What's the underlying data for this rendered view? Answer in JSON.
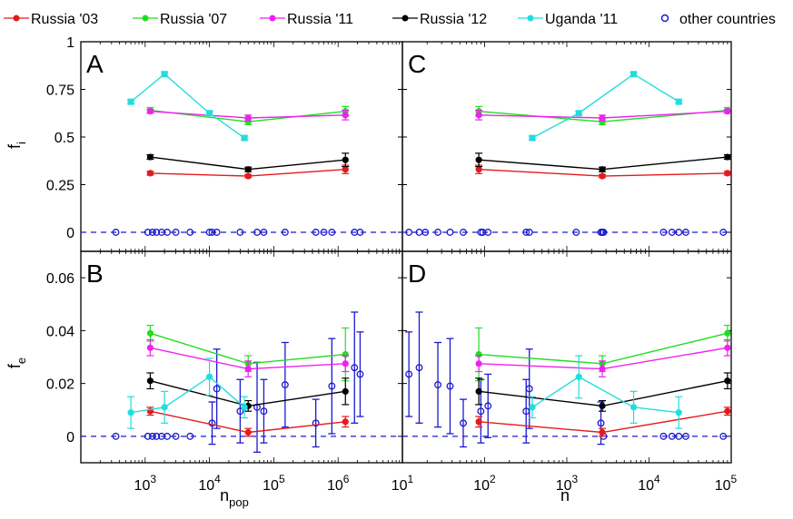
{
  "legend": [
    {
      "label": "Russia '03",
      "color": "#e41a1c",
      "marker": "filled"
    },
    {
      "label": "Russia '07",
      "color": "#22dd22",
      "marker": "filled"
    },
    {
      "label": "Russia '11",
      "color": "#ee22ee",
      "marker": "filled"
    },
    {
      "label": "Russia '12",
      "color": "#000000",
      "marker": "filled"
    },
    {
      "label": "Uganda '11",
      "color": "#22dddd",
      "marker": "filled"
    },
    {
      "label": "other countries",
      "color": "#1a1ad0",
      "marker": "open"
    }
  ],
  "axis_labels": {
    "ylabel_top": "f",
    "ylabel_top_sub": "i",
    "ylabel_bottom": "f",
    "ylabel_bottom_sub": "e",
    "xlabel_left": "n",
    "xlabel_left_sub": "pop",
    "xlabel_right": "n"
  },
  "chart_data": [
    {
      "panel": "A",
      "type": "line",
      "xscale": "log",
      "xlim": [
        100,
        10000000
      ],
      "ylim": [
        -0.1,
        1
      ],
      "yticks": [
        "0",
        "0.25",
        "0.5",
        "0.75",
        "1"
      ],
      "series": [
        {
          "name": "Russia '03",
          "color": "#e41a1c",
          "x": [
            1200,
            40000,
            1300000
          ],
          "y": [
            0.31,
            0.295,
            0.33
          ],
          "err": [
            0.01,
            0.008,
            0.022
          ]
        },
        {
          "name": "Russia '07",
          "color": "#22dd22",
          "x": [
            1200,
            40000,
            1300000
          ],
          "y": [
            0.64,
            0.58,
            0.635
          ],
          "err": [
            0.015,
            0.015,
            0.025
          ]
        },
        {
          "name": "Russia '11",
          "color": "#ee22ee",
          "x": [
            1200,
            40000,
            1300000
          ],
          "y": [
            0.635,
            0.6,
            0.615
          ],
          "err": [
            0.01,
            0.015,
            0.025
          ]
        },
        {
          "name": "Russia '12",
          "color": "#000000",
          "x": [
            1200,
            40000,
            1300000
          ],
          "y": [
            0.395,
            0.33,
            0.38
          ],
          "err": [
            0.012,
            0.012,
            0.035
          ]
        },
        {
          "name": "Uganda '11",
          "color": "#22dddd",
          "x": [
            600,
            2000,
            10000,
            35000
          ],
          "y": [
            0.685,
            0.83,
            0.625,
            0.495
          ],
          "err": [
            0.01,
            0.01,
            0.01,
            0.01
          ]
        }
      ],
      "other": {
        "x": [
          350,
          1100,
          1300,
          1500,
          1800,
          2200,
          3000,
          5000,
          10000,
          11000,
          13000,
          30000,
          55000,
          70000,
          150000,
          450000,
          600000,
          800000,
          1800000,
          2200000
        ],
        "y": [
          0,
          0,
          0,
          0,
          0,
          0,
          0,
          0,
          0,
          0,
          0,
          0,
          0,
          0,
          0,
          0,
          0,
          0,
          0,
          0
        ],
        "err": []
      },
      "dashed_zero": true
    },
    {
      "panel": "B",
      "type": "line",
      "xscale": "log",
      "xlim": [
        100,
        10000000
      ],
      "ylim": [
        -0.01,
        0.07
      ],
      "yticks": [
        "0",
        "0.02",
        "0.04",
        "0.06"
      ],
      "series": [
        {
          "name": "Russia '03",
          "color": "#e41a1c",
          "x": [
            1200,
            40000,
            1300000
          ],
          "y": [
            0.0095,
            0.0015,
            0.0055
          ],
          "err": [
            0.0015,
            0.0015,
            0.002
          ]
        },
        {
          "name": "Russia '07",
          "color": "#22dd22",
          "x": [
            1200,
            40000,
            1300000
          ],
          "y": [
            0.039,
            0.0275,
            0.031
          ],
          "err": [
            0.003,
            0.003,
            0.01
          ]
        },
        {
          "name": "Russia '11",
          "color": "#ee22ee",
          "x": [
            1200,
            40000,
            1300000
          ],
          "y": [
            0.0335,
            0.0255,
            0.0275
          ],
          "err": [
            0.003,
            0.003,
            0.003
          ]
        },
        {
          "name": "Russia '12",
          "color": "#000000",
          "x": [
            1200,
            40000,
            1300000
          ],
          "y": [
            0.021,
            0.0115,
            0.017
          ],
          "err": [
            0.003,
            0.002,
            0.005
          ]
        },
        {
          "name": "Uganda '11",
          "color": "#22dddd",
          "x": [
            600,
            2000,
            10000,
            35000
          ],
          "y": [
            0.009,
            0.011,
            0.0225,
            0.011
          ],
          "err": [
            0.006,
            0.006,
            0.007,
            0.004
          ]
        }
      ],
      "other": {
        "x": [
          350,
          1100,
          1300,
          1500,
          1800,
          2200,
          3000,
          5000,
          11000,
          13000,
          30000,
          55000,
          70000,
          150000,
          450000,
          800000,
          1800000,
          2200000
        ],
        "y": [
          0,
          0,
          0,
          0,
          0,
          0,
          0,
          0,
          0.005,
          0.018,
          0.0095,
          0.011,
          0.0095,
          0.0195,
          0.005,
          0.019,
          0.026,
          0.0235
        ],
        "err": [
          0,
          0,
          0,
          0,
          0,
          0,
          0,
          0,
          0.008,
          0.015,
          0.012,
          0.017,
          0.012,
          0.016,
          0.009,
          0.018,
          0.021,
          0.016
        ]
      },
      "dashed_zero": true
    },
    {
      "panel": "C",
      "type": "line",
      "xscale": "log",
      "xlim": [
        10,
        100000
      ],
      "ylim": [
        -0.1,
        1
      ],
      "series": [
        {
          "name": "Russia '03",
          "color": "#e41a1c",
          "x": [
            85,
            2700,
            90000
          ],
          "y": [
            0.33,
            0.295,
            0.31
          ],
          "err": [
            0.022,
            0.008,
            0.01
          ]
        },
        {
          "name": "Russia '07",
          "color": "#22dd22",
          "x": [
            85,
            2700,
            90000
          ],
          "y": [
            0.635,
            0.58,
            0.64
          ],
          "err": [
            0.025,
            0.015,
            0.015
          ]
        },
        {
          "name": "Russia '11",
          "color": "#ee22ee",
          "x": [
            85,
            2700,
            90000
          ],
          "y": [
            0.615,
            0.6,
            0.635
          ],
          "err": [
            0.025,
            0.015,
            0.01
          ]
        },
        {
          "name": "Russia '12",
          "color": "#000000",
          "x": [
            85,
            2700,
            90000
          ],
          "y": [
            0.38,
            0.33,
            0.395
          ],
          "err": [
            0.035,
            0.012,
            0.012
          ]
        },
        {
          "name": "Uganda '11",
          "color": "#22dddd",
          "x": [
            380,
            1400,
            6500,
            23000
          ],
          "y": [
            0.495,
            0.625,
            0.83,
            0.685
          ],
          "err": [
            0.01,
            0.01,
            0.01,
            0.01
          ]
        }
      ],
      "other": {
        "x": [
          12,
          16,
          19,
          27,
          38,
          55,
          90,
          95,
          110,
          320,
          350,
          1300,
          2600,
          2700,
          2800,
          15000,
          19000,
          23000,
          28000,
          80000
        ],
        "y": [
          0,
          0,
          0,
          0,
          0,
          0,
          0,
          0,
          0,
          0,
          0,
          0,
          0,
          0,
          0,
          0,
          0,
          0,
          0,
          0
        ],
        "err": []
      },
      "dashed_zero": true
    },
    {
      "panel": "D",
      "type": "line",
      "xscale": "log",
      "xlim": [
        10,
        100000
      ],
      "ylim": [
        -0.01,
        0.07
      ],
      "series": [
        {
          "name": "Russia '03",
          "color": "#e41a1c",
          "x": [
            85,
            2700,
            90000
          ],
          "y": [
            0.0055,
            0.0015,
            0.0095
          ],
          "err": [
            0.002,
            0.0015,
            0.0015
          ]
        },
        {
          "name": "Russia '07",
          "color": "#22dd22",
          "x": [
            85,
            2700,
            90000
          ],
          "y": [
            0.031,
            0.0275,
            0.039
          ],
          "err": [
            0.01,
            0.003,
            0.003
          ]
        },
        {
          "name": "Russia '11",
          "color": "#ee22ee",
          "x": [
            85,
            2700,
            90000
          ],
          "y": [
            0.0275,
            0.0255,
            0.0335
          ],
          "err": [
            0.003,
            0.003,
            0.003
          ]
        },
        {
          "name": "Russia '12",
          "color": "#000000",
          "x": [
            85,
            2700,
            90000
          ],
          "y": [
            0.017,
            0.0115,
            0.021
          ],
          "err": [
            0.005,
            0.002,
            0.003
          ]
        },
        {
          "name": "Uganda '11",
          "color": "#22dddd",
          "x": [
            380,
            1400,
            6500,
            23000
          ],
          "y": [
            0.011,
            0.0225,
            0.011,
            0.009
          ],
          "err": [
            0.004,
            0.008,
            0.006,
            0.006
          ]
        }
      ],
      "other": {
        "x": [
          12,
          16,
          27,
          38,
          55,
          90,
          110,
          320,
          350,
          2600,
          2800,
          15000,
          19000,
          23000,
          28000,
          80000
        ],
        "y": [
          0.0235,
          0.026,
          0.0195,
          0.019,
          0.005,
          0.0095,
          0.0115,
          0.0095,
          0.018,
          0.005,
          0,
          0,
          0,
          0,
          0,
          0
        ],
        "err": [
          0.016,
          0.021,
          0.016,
          0.018,
          0.009,
          0.012,
          0.012,
          0.012,
          0.015,
          0.008,
          0,
          0,
          0,
          0,
          0,
          0
        ]
      },
      "dashed_zero": true
    }
  ],
  "x_tick_labels_left": [
    "10",
    "10",
    "10",
    "10"
  ],
  "x_tick_exps_left": [
    "3",
    "4",
    "5",
    "6"
  ],
  "x_tick_labels_right": [
    "10",
    "10",
    "10",
    "10",
    "10"
  ],
  "x_tick_exps_right": [
    "1",
    "2",
    "3",
    "4",
    "5"
  ]
}
